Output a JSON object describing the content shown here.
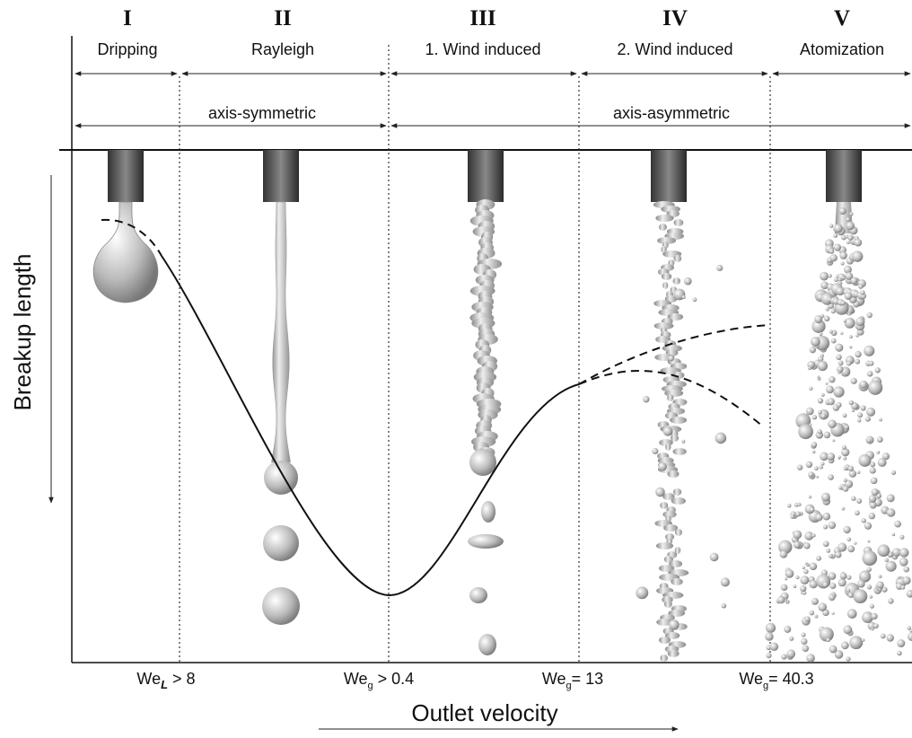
{
  "regimes": [
    {
      "numeral": "I",
      "name": "Dripping"
    },
    {
      "numeral": "II",
      "name": "Rayleigh"
    },
    {
      "numeral": "III",
      "name": "1. Wind induced"
    },
    {
      "numeral": "IV",
      "name": "2. Wind induced"
    },
    {
      "numeral": "V",
      "name": "Atomization"
    }
  ],
  "groups": [
    "axis-symmetric",
    "axis-asymmetric"
  ],
  "thresholds": [
    {
      "base": "We",
      "sub": "L",
      "rest": " > 8"
    },
    {
      "base": "We",
      "sub": "g",
      "rest": " > 0.4"
    },
    {
      "base": "We",
      "sub": "g",
      "rest": "= 13"
    },
    {
      "base": "We",
      "sub": "g",
      "rest": "= 40.3"
    }
  ],
  "y_axis_label": "Breakup length",
  "x_axis_label": "Outlet velocity"
}
